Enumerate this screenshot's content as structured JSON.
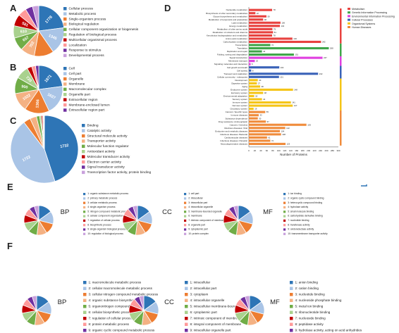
{
  "panels": {
    "A": "A",
    "B": "B",
    "C": "C",
    "D": "D",
    "E": "E",
    "F": "F"
  },
  "colors": [
    "#2e75b6",
    "#a9c4e6",
    "#ed7d31",
    "#f4b183",
    "#70ad47",
    "#a9d18e",
    "#c00000",
    "#ff9999",
    "#7030a0",
    "#c9a0dc"
  ],
  "chart_data": [
    {
      "type": "pie",
      "panel": "A",
      "labels": [
        "Cellular process",
        "Metabolic process",
        "Single-organism process",
        "Biological regulation",
        "Cellular component organization or biogenesis",
        "Regulation of biological process",
        "Multicellular organismal process",
        "Localization",
        "Response to stimulus",
        "Developmental process"
      ],
      "values": [
        1778,
        1345,
        970,
        702,
        657,
        610,
        581,
        423,
        360,
        312
      ],
      "value_labels": [
        "1778",
        "1345",
        "",
        "702",
        "657",
        "610",
        "581",
        "",
        "",
        ""
      ]
    },
    {
      "type": "pie",
      "panel": "B",
      "labels": [
        "Cell",
        "Cell part",
        "Organelle",
        "Membrane",
        "Macromolecular complex",
        "Organelle part",
        "Extracellular region",
        "Membrane-enclosed lumen",
        "Extracellular region part"
      ],
      "values": [
        1871,
        1627,
        1366,
        1022,
        900,
        720,
        260,
        210,
        180
      ],
      "value_labels": [
        "1871",
        "1627",
        "1366",
        "1022",
        "900",
        "720",
        "",
        "",
        ""
      ]
    },
    {
      "type": "pie",
      "panel": "C",
      "labels": [
        "Binding",
        "Catalytic activity",
        "Structural molecule activity",
        "Transporter activity",
        "Molecular function regulator",
        "Antioxidant activity",
        "Molecular transducer activity",
        "Electron carrier activity",
        "Signal transducer activity",
        "Transcription factor activity, protein binding"
      ],
      "values": [
        1732,
        1722,
        130,
        120,
        60,
        30,
        25,
        15,
        10,
        8
      ],
      "value_labels": [
        "1732",
        "1722",
        "",
        "",
        "",
        "",
        "",
        "",
        "",
        ""
      ]
    },
    {
      "type": "bar",
      "orientation": "horizontal",
      "panel": "D",
      "xlabel": "Number of Proteins",
      "xlim": [
        0,
        300
      ],
      "xticks": [
        0,
        20,
        40,
        60,
        80,
        100,
        120,
        140,
        160,
        180,
        200,
        220,
        240,
        260,
        280,
        300
      ],
      "legend": [
        "Metabolism",
        "Genetic Information Processing",
        "Environmental Information Processing",
        "Cellular Processes",
        "Organismal Systems",
        "Human Diseases"
      ],
      "legend_colors": [
        "#e8423f",
        "#3fa64a",
        "#e040e0",
        "#3a63b8",
        "#f5c518",
        "#f08c3c"
      ],
      "categories": [
        "Nucleotide metabolism",
        "Biosynthesis of other secondary metabolites",
        "Glycan biosynthesis and metabolism",
        "Metabolism of terpenoids and polyketides",
        "Lipid metabolism",
        "Energy metabolism",
        "Metabolism of other amino acids",
        "Metabolism of cofactors and vitamins",
        "Xenobiotics biodegradation and metabolism",
        "Amino acid metabolism",
        "Carbohydrate metabolism",
        "Transcription",
        "Translation",
        "Replication and repair",
        "Folding, sorting and degradation",
        "Signal transduction",
        "Membrane transport",
        "Signaling molecules and interaction",
        "Cell growth and death",
        "Cell activity",
        "Transport and catabolism",
        "Cellular community - eukaryotes",
        "Development",
        "Digestive system",
        "Aging",
        "Endocrine system",
        "Excretory system",
        "Environmental adaptation",
        "Sensory system",
        "Immune system",
        "Nervous system",
        "Circulatory system",
        "Cancers: Specific types",
        "Immune diseases",
        "Substance dependence",
        "Drug resistance: Antineoplastic",
        "Cancers: Overview",
        "Infectious diseases: Viral",
        "Endocrine and metabolic diseases",
        "Infectious diseases: Bacterial",
        "Cardiovascular diseases",
        "Infectious diseases: Parasitic",
        "Neurodegenerative diseases"
      ],
      "values": [
        78,
        22,
        59,
        48,
        106,
        104,
        79,
        81,
        78,
        146,
        242,
        72,
        268,
        44,
        151,
        247,
        20,
        6,
        102,
        8,
        232,
        101,
        30,
        27,
        38,
        148,
        48,
        18,
        44,
        141,
        147,
        16,
        55,
        33,
        30,
        57,
        193,
        122,
        104,
        108,
        61,
        72,
        123
      ],
      "groups": [
        0,
        0,
        0,
        0,
        0,
        0,
        0,
        0,
        0,
        0,
        0,
        1,
        1,
        1,
        1,
        2,
        2,
        2,
        3,
        3,
        3,
        3,
        4,
        4,
        4,
        4,
        4,
        4,
        4,
        4,
        4,
        4,
        5,
        5,
        5,
        5,
        5,
        5,
        5,
        5,
        5,
        5,
        5
      ]
    },
    {
      "type": "pie",
      "panel": "E",
      "title": "BP",
      "labels": [
        "1: organic substance metabolic process",
        "2: primary metabolic process",
        "3: cellular metabolic process",
        "4: single-organism process",
        "5: nitrogen compound metabolic process",
        "6: cellular component organization",
        "7: regulation of cellular process",
        "8: biosynthetic process",
        "9: single-organism biological process",
        "10: regulation of biological process"
      ],
      "values": [
        15,
        14,
        12,
        11,
        10,
        10,
        9,
        8,
        6,
        5
      ],
      "value_labels": [
        "",
        "",
        "",
        "",
        "",
        "",
        "",
        "",
        "",
        ""
      ]
    },
    {
      "type": "pie",
      "panel": "E",
      "title": "CC",
      "labels": [
        "1: cell part",
        "2: intracellular",
        "3: intracellular part",
        "4: intracellular organelle",
        "5: membrane-bounded organelle",
        "6: membrane",
        "7: intrinsic component of membrane",
        "8: organelle part",
        "9: cytoplasmic part",
        "10: protein complex"
      ],
      "values": [
        15,
        14,
        12,
        11,
        10,
        10,
        9,
        8,
        6,
        5
      ],
      "value_labels": [
        "",
        "",
        "",
        "",
        "",
        "",
        "",
        "",
        "",
        ""
      ]
    },
    {
      "type": "pie",
      "panel": "E",
      "title": "MF",
      "labels": [
        "1: ion binding",
        "2: organic cyclic compound binding",
        "3: heterocyclic compound binding",
        "4: hydrolase activity",
        "5: small molecule binding",
        "6: carbohydrate derivative binding",
        "7: nucleotide binding",
        "8: transferase activity",
        "9: oxidoreductase activity",
        "10: transmembrane transporter activity"
      ],
      "values": [
        15,
        14,
        12,
        11,
        10,
        10,
        9,
        8,
        6,
        5
      ],
      "value_labels": [
        "",
        "",
        "",
        "",
        "",
        "",
        "",
        "",
        "",
        ""
      ]
    },
    {
      "type": "pie",
      "panel": "F",
      "title": "BP",
      "labels": [
        "1: macromolecule metabolic process",
        "2: cellular macromolecule metabolic process",
        "3: cellular nitrogen compound metabolic process",
        "4: organic substance biosynthetic process",
        "5: organonitrogen compound metabolic process",
        "6: cellular biosynthetic process",
        "7: regulation of cellular process",
        "8: protein metabolic process",
        "9: organic cyclic compound metabolic process",
        "10: cellular aromatic compound metabolic process"
      ],
      "values": [
        15,
        14,
        12,
        11,
        10,
        10,
        9,
        8,
        6,
        5
      ],
      "value_labels": [
        "",
        "",
        "",
        "",
        "",
        "",
        "",
        "",
        "",
        ""
      ]
    },
    {
      "type": "pie",
      "panel": "F",
      "title": "CC",
      "labels": [
        "1: intracellular",
        "2: intracellular part",
        "3: cytoplasm",
        "4: intracellular organelle",
        "5: intracellular membrane-bounded organelle",
        "6: cytoplasmic part",
        "7: intrinsic component of membrane",
        "8: integral component of membrane",
        "9: intracellular organelle part",
        "10: intracellular non-membrane-bounded organelle"
      ],
      "values": [
        15,
        14,
        12,
        11,
        10,
        10,
        9,
        8,
        6,
        5
      ],
      "value_labels": [
        "",
        "",
        "",
        "",
        "",
        "",
        "",
        "",
        "",
        ""
      ]
    },
    {
      "type": "pie",
      "panel": "F",
      "title": "MF",
      "labels": [
        "1: anion binding",
        "2: cation binding",
        "3: nucleotide binding",
        "4: nucleoside phosphate binding",
        "5: metal ion binding",
        "6: ribonucleotide binding",
        "7: nucleoside binding",
        "8: peptidase activity",
        "9: hydrolase activity, acting on acid anhydrides",
        "10: transferase activity, transferring phosphorus-containing groups"
      ],
      "values": [
        15,
        14,
        12,
        11,
        10,
        10,
        9,
        8,
        6,
        5
      ],
      "value_labels": [
        "",
        "",
        "",
        "",
        "",
        "",
        "",
        "",
        "",
        ""
      ]
    }
  ]
}
